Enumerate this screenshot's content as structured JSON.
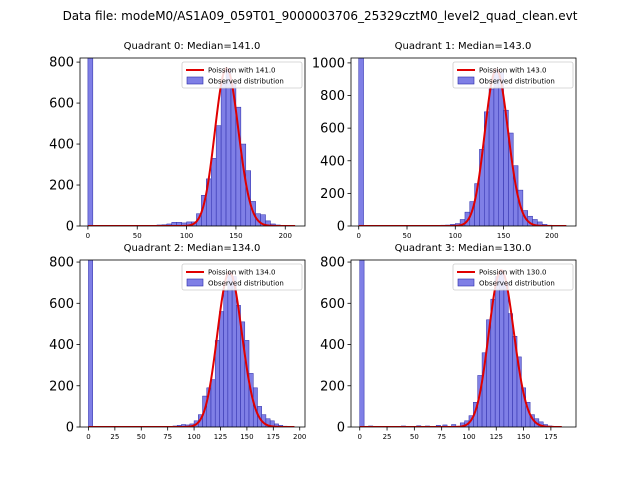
{
  "title": "Data file: modeM0/AS1A09_059T01_9000003706_25329cztM0_level2_quad_clean.evt",
  "colors": {
    "bar_fill": "#7f7fe6",
    "bar_edge": "#2a2aa8",
    "fit_line": "#e00000"
  },
  "chart_data": [
    {
      "type": "bar",
      "title": "Quadrant 0: Median=141.0",
      "median": 141.0,
      "xlim": [
        -8,
        220
      ],
      "ylim": [
        0,
        820
      ],
      "xticks": [
        0,
        50,
        100,
        150,
        200
      ],
      "yticks": [
        0,
        200,
        400,
        600,
        800
      ],
      "bin_width": 5,
      "legend": [
        "Poission with 141.0",
        "Observed distribution"
      ],
      "bars": [
        {
          "x": 0,
          "v": 820
        },
        {
          "x": 65,
          "v": 3
        },
        {
          "x": 70,
          "v": 5
        },
        {
          "x": 75,
          "v": 6
        },
        {
          "x": 80,
          "v": 10
        },
        {
          "x": 85,
          "v": 18
        },
        {
          "x": 90,
          "v": 18
        },
        {
          "x": 95,
          "v": 15
        },
        {
          "x": 100,
          "v": 20
        },
        {
          "x": 105,
          "v": 20
        },
        {
          "x": 110,
          "v": 60
        },
        {
          "x": 115,
          "v": 150
        },
        {
          "x": 120,
          "v": 230
        },
        {
          "x": 125,
          "v": 330
        },
        {
          "x": 130,
          "v": 490
        },
        {
          "x": 135,
          "v": 700
        },
        {
          "x": 140,
          "v": 770
        },
        {
          "x": 145,
          "v": 700
        },
        {
          "x": 150,
          "v": 580
        },
        {
          "x": 155,
          "v": 400
        },
        {
          "x": 160,
          "v": 270
        },
        {
          "x": 165,
          "v": 120
        },
        {
          "x": 170,
          "v": 60
        },
        {
          "x": 175,
          "v": 55
        },
        {
          "x": 180,
          "v": 25
        },
        {
          "x": 185,
          "v": 10
        },
        {
          "x": 190,
          "v": 5
        },
        {
          "x": 195,
          "v": 3
        }
      ],
      "fit_range": [
        0,
        210
      ]
    },
    {
      "type": "bar",
      "title": "Quadrant 1: Median=143.0",
      "median": 143.0,
      "xlim": [
        -8,
        225
      ],
      "ylim": [
        0,
        1030
      ],
      "xticks": [
        0,
        50,
        100,
        150,
        200
      ],
      "yticks": [
        0,
        200,
        400,
        600,
        800,
        1000
      ],
      "bin_width": 5,
      "legend": [
        "Poission with 143.0",
        "Observed distribution"
      ],
      "bars": [
        {
          "x": 0,
          "v": 1030
        },
        {
          "x": 80,
          "v": 3
        },
        {
          "x": 85,
          "v": 5
        },
        {
          "x": 90,
          "v": 6
        },
        {
          "x": 95,
          "v": 10
        },
        {
          "x": 100,
          "v": 15
        },
        {
          "x": 105,
          "v": 40
        },
        {
          "x": 110,
          "v": 85
        },
        {
          "x": 115,
          "v": 150
        },
        {
          "x": 120,
          "v": 260
        },
        {
          "x": 125,
          "v": 470
        },
        {
          "x": 130,
          "v": 700
        },
        {
          "x": 135,
          "v": 840
        },
        {
          "x": 140,
          "v": 960
        },
        {
          "x": 145,
          "v": 940
        },
        {
          "x": 150,
          "v": 710
        },
        {
          "x": 155,
          "v": 570
        },
        {
          "x": 160,
          "v": 370
        },
        {
          "x": 165,
          "v": 220
        },
        {
          "x": 170,
          "v": 95
        },
        {
          "x": 175,
          "v": 60
        },
        {
          "x": 180,
          "v": 40
        },
        {
          "x": 185,
          "v": 25
        },
        {
          "x": 190,
          "v": 10
        },
        {
          "x": 195,
          "v": 5
        }
      ],
      "fit_range": [
        0,
        215
      ]
    },
    {
      "type": "bar",
      "title": "Quadrant 2: Median=134.0",
      "median": 134.0,
      "xlim": [
        -8,
        205
      ],
      "ylim": [
        0,
        810
      ],
      "xticks": [
        0,
        25,
        50,
        75,
        100,
        125,
        150,
        175,
        200
      ],
      "yticks": [
        0,
        200,
        400,
        600,
        800
      ],
      "bin_width": 4,
      "legend": [
        "Poission with 134.0",
        "Observed distribution"
      ],
      "bars": [
        {
          "x": 0,
          "v": 810
        },
        {
          "x": 72,
          "v": 3
        },
        {
          "x": 80,
          "v": 5
        },
        {
          "x": 84,
          "v": 8
        },
        {
          "x": 88,
          "v": 12
        },
        {
          "x": 92,
          "v": 10
        },
        {
          "x": 96,
          "v": 15
        },
        {
          "x": 100,
          "v": 30
        },
        {
          "x": 104,
          "v": 60
        },
        {
          "x": 108,
          "v": 150
        },
        {
          "x": 112,
          "v": 190
        },
        {
          "x": 116,
          "v": 230
        },
        {
          "x": 120,
          "v": 420
        },
        {
          "x": 124,
          "v": 560
        },
        {
          "x": 128,
          "v": 660
        },
        {
          "x": 132,
          "v": 750
        },
        {
          "x": 136,
          "v": 730
        },
        {
          "x": 140,
          "v": 590
        },
        {
          "x": 144,
          "v": 510
        },
        {
          "x": 148,
          "v": 420
        },
        {
          "x": 152,
          "v": 260
        },
        {
          "x": 156,
          "v": 190
        },
        {
          "x": 160,
          "v": 100
        },
        {
          "x": 164,
          "v": 60
        },
        {
          "x": 168,
          "v": 40
        },
        {
          "x": 172,
          "v": 30
        },
        {
          "x": 176,
          "v": 15
        },
        {
          "x": 180,
          "v": 8
        },
        {
          "x": 184,
          "v": 4
        }
      ],
      "fit_range": [
        0,
        195
      ]
    },
    {
      "type": "bar",
      "title": "Quadrant 3: Median=130.0",
      "median": 130.0,
      "xlim": [
        -8,
        198
      ],
      "ylim": [
        0,
        810
      ],
      "xticks": [
        0,
        25,
        50,
        75,
        100,
        125,
        150,
        175
      ],
      "yticks": [
        0,
        200,
        400,
        600,
        800
      ],
      "bin_width": 4,
      "legend": [
        "Poission with 130.0",
        "Observed distribution"
      ],
      "bars": [
        {
          "x": 0,
          "v": 810
        },
        {
          "x": 8,
          "v": 5
        },
        {
          "x": 30,
          "v": 3
        },
        {
          "x": 38,
          "v": 5
        },
        {
          "x": 52,
          "v": 6
        },
        {
          "x": 60,
          "v": 5
        },
        {
          "x": 70,
          "v": 8
        },
        {
          "x": 76,
          "v": 10
        },
        {
          "x": 84,
          "v": 12
        },
        {
          "x": 92,
          "v": 20
        },
        {
          "x": 96,
          "v": 30
        },
        {
          "x": 100,
          "v": 55
        },
        {
          "x": 104,
          "v": 120
        },
        {
          "x": 108,
          "v": 250
        },
        {
          "x": 112,
          "v": 360
        },
        {
          "x": 116,
          "v": 520
        },
        {
          "x": 120,
          "v": 620
        },
        {
          "x": 124,
          "v": 730
        },
        {
          "x": 128,
          "v": 760
        },
        {
          "x": 132,
          "v": 700
        },
        {
          "x": 136,
          "v": 550
        },
        {
          "x": 140,
          "v": 440
        },
        {
          "x": 144,
          "v": 340
        },
        {
          "x": 148,
          "v": 190
        },
        {
          "x": 152,
          "v": 120
        },
        {
          "x": 156,
          "v": 60
        },
        {
          "x": 160,
          "v": 40
        },
        {
          "x": 164,
          "v": 25
        },
        {
          "x": 168,
          "v": 12
        },
        {
          "x": 172,
          "v": 5
        }
      ],
      "fit_range": [
        0,
        185
      ]
    }
  ]
}
